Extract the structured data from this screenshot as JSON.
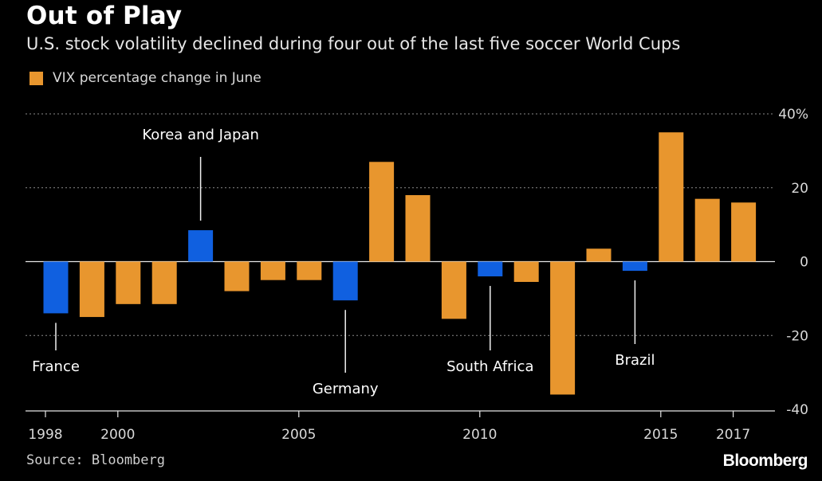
{
  "header": {
    "title": "Out of Play",
    "subtitle": "U.S. stock volatility declined during four out of the last five soccer World Cups"
  },
  "legend": {
    "label": "VIX percentage change in June"
  },
  "footer": {
    "source": "Source: Bloomberg",
    "brand": "Bloomberg"
  },
  "colors": {
    "background": "#000000",
    "orange": "#e8962e",
    "blue": "#1060e0",
    "grid": "#8a8a8a",
    "text": "#ffffff"
  },
  "chart_data": {
    "type": "bar",
    "categories": [
      1998,
      1999,
      2000,
      2001,
      2002,
      2003,
      2004,
      2005,
      2006,
      2007,
      2008,
      2009,
      2010,
      2011,
      2012,
      2013,
      2014,
      2015,
      2016,
      2017
    ],
    "values": [
      -14,
      -15,
      -11.5,
      -11.5,
      8.5,
      -8,
      -5,
      -5,
      -10.5,
      27,
      18,
      -15.5,
      -4,
      -5.5,
      -36,
      3.5,
      -2.5,
      35,
      17,
      16
    ],
    "world_cup_years": [
      1998,
      2002,
      2006,
      2010,
      2014
    ],
    "ylim": [
      -40,
      40
    ],
    "yticks": [
      {
        "value": 40,
        "label": "40%"
      },
      {
        "value": 20,
        "label": "20"
      },
      {
        "value": 0,
        "label": "0"
      },
      {
        "value": -20,
        "label": "-20"
      },
      {
        "value": -40,
        "label": "-40"
      }
    ],
    "xticks": [
      1998,
      2000,
      2005,
      2010,
      2015,
      2017
    ],
    "annotations": [
      {
        "year": 1998,
        "label": "France"
      },
      {
        "year": 2002,
        "label": "Korea and Japan"
      },
      {
        "year": 2006,
        "label": "Germany"
      },
      {
        "year": 2010,
        "label": "South Africa"
      },
      {
        "year": 2014,
        "label": "Brazil"
      }
    ],
    "grid": true,
    "legend_position": "top-left"
  }
}
